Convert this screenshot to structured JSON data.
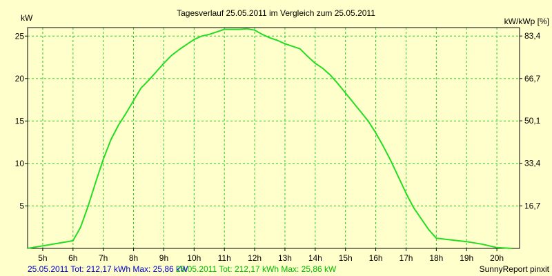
{
  "chart_data": {
    "type": "line",
    "title": "Tagesverlauf 25.05.2011 im Vergleich zum 25.05.2011",
    "ylabel": "kW",
    "y2label": "kW/kWp [%]",
    "ylim": [
      0,
      26
    ],
    "y2lim": [
      0,
      86.7
    ],
    "xlim": [
      4.5,
      20.75
    ],
    "x_ticks": [
      5,
      6,
      7,
      8,
      9,
      10,
      11,
      12,
      13,
      14,
      15,
      16,
      17,
      18,
      19,
      20
    ],
    "x_tick_labels": [
      "5h",
      "6h",
      "7h",
      "8h",
      "9h",
      "10h",
      "11h",
      "12h",
      "13h",
      "14h",
      "15h",
      "16h",
      "17h",
      "18h",
      "19h",
      "20h"
    ],
    "y_ticks": [
      5,
      10,
      15,
      20,
      25
    ],
    "y_tick_labels": [
      "5",
      "10",
      "15",
      "20",
      "25"
    ],
    "y2_ticks": [
      16.7,
      33.4,
      50.1,
      66.7,
      83.4
    ],
    "y2_tick_labels": [
      "16,7",
      "33,4",
      "50,1",
      "66,7",
      "83,4"
    ],
    "grid": true,
    "colors": {
      "line": "#22dd22",
      "grid": "#22cc22",
      "background": "#ffffcc",
      "axis": "#000000"
    },
    "series": [
      {
        "name": "25.05.2011",
        "x": [
          4.5,
          5.0,
          5.5,
          6.0,
          6.25,
          6.5,
          6.75,
          7.0,
          7.25,
          7.5,
          7.75,
          8.0,
          8.25,
          8.5,
          8.75,
          9.0,
          9.25,
          9.5,
          9.75,
          10.0,
          10.25,
          10.5,
          10.75,
          11.0,
          11.25,
          11.5,
          11.75,
          12.0,
          12.25,
          12.5,
          12.75,
          13.0,
          13.25,
          13.5,
          13.75,
          14.0,
          14.25,
          14.5,
          14.75,
          15.0,
          15.25,
          15.5,
          15.75,
          16.0,
          16.25,
          16.5,
          16.75,
          17.0,
          17.25,
          17.5,
          17.75,
          18.0,
          18.5,
          19.0,
          19.5,
          20.0,
          20.5
        ],
        "values": [
          0.0,
          0.3,
          0.6,
          0.9,
          2.5,
          5.0,
          7.8,
          10.5,
          12.8,
          14.5,
          15.9,
          17.4,
          18.9,
          19.8,
          20.8,
          21.8,
          22.7,
          23.4,
          24.0,
          24.6,
          25.0,
          25.2,
          25.5,
          25.8,
          25.8,
          25.8,
          25.86,
          25.7,
          25.2,
          24.8,
          24.5,
          24.1,
          23.8,
          23.5,
          22.6,
          21.8,
          21.2,
          20.4,
          19.4,
          18.3,
          17.2,
          16.1,
          15.0,
          13.6,
          12.0,
          10.3,
          8.4,
          6.5,
          4.8,
          3.5,
          2.2,
          1.2,
          1.0,
          0.8,
          0.5,
          0.1,
          0.0
        ]
      }
    ],
    "footer": {
      "left_blue": "25.05.2011 Tot: 212,17 kWh Max: 25,86 kW",
      "left_green": "25.05.2011 Tot: 212,17 kWh Max: 25,86 kW",
      "right": "SunnyReport pinxit"
    }
  }
}
